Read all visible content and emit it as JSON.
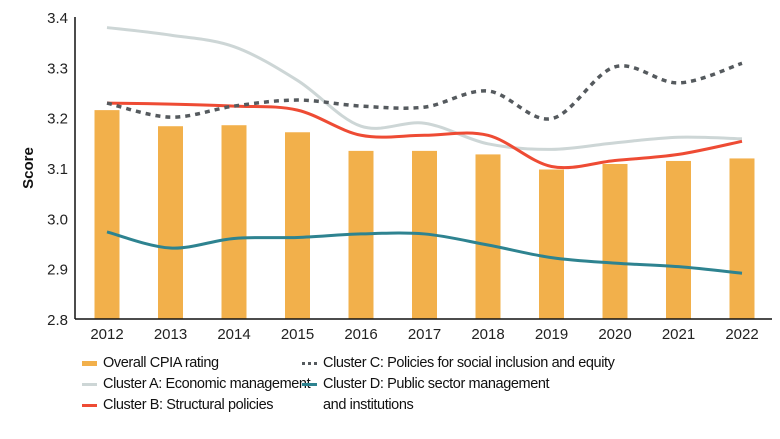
{
  "chart_data": {
    "type": "bar+line",
    "ylabel": "Score",
    "xlabel": "",
    "ylim": [
      2.8,
      3.4
    ],
    "yticks": [
      "2.8",
      "2.9",
      "3.0",
      "3.1",
      "3.2",
      "3.3",
      "3.4"
    ],
    "categories": [
      "2012",
      "2013",
      "2014",
      "2015",
      "2016",
      "2017",
      "2018",
      "2019",
      "2020",
      "2021",
      "2022"
    ],
    "grid": false,
    "legend_position": "bottom",
    "series": [
      {
        "name": "Overall CPIA rating",
        "kind": "bar",
        "color": "#f2b04b",
        "values": [
          3.215,
          3.183,
          3.185,
          3.171,
          3.134,
          3.134,
          3.127,
          3.097,
          3.108,
          3.114,
          3.119
        ]
      },
      {
        "name": "Cluster A: Economic management",
        "kind": "line",
        "color": "#cdd6d6",
        "dashed": false,
        "values": [
          3.379,
          3.364,
          3.341,
          3.274,
          3.183,
          3.189,
          3.148,
          3.137,
          3.15,
          3.161,
          3.158
        ]
      },
      {
        "name": "Cluster B: Structural policies",
        "kind": "line",
        "color": "#ee4b34",
        "dashed": false,
        "values": [
          3.229,
          3.227,
          3.223,
          3.215,
          3.165,
          3.165,
          3.165,
          3.103,
          3.115,
          3.127,
          3.153
        ]
      },
      {
        "name": "Cluster C: Policies for social inclusion and equity",
        "kind": "line",
        "color": "#555a5e",
        "dashed": true,
        "values": [
          3.229,
          3.201,
          3.223,
          3.235,
          3.223,
          3.221,
          3.253,
          3.198,
          3.301,
          3.269,
          3.308
        ]
      },
      {
        "name": "Cluster D: Public sector management and institutions",
        "kind": "line",
        "color": "#2e8390",
        "dashed": false,
        "values": [
          2.973,
          2.941,
          2.96,
          2.962,
          2.969,
          2.969,
          2.947,
          2.922,
          2.911,
          2.904,
          2.891
        ]
      }
    ]
  },
  "legend": {
    "overall": "Overall CPIA rating",
    "cluster_a": "Cluster A: Economic management",
    "cluster_b": "Cluster B: Structural policies",
    "cluster_c": "Cluster C: Policies for social inclusion and equity",
    "cluster_d_line1": "Cluster D: Public sector management",
    "cluster_d_line2": "and institutions"
  }
}
